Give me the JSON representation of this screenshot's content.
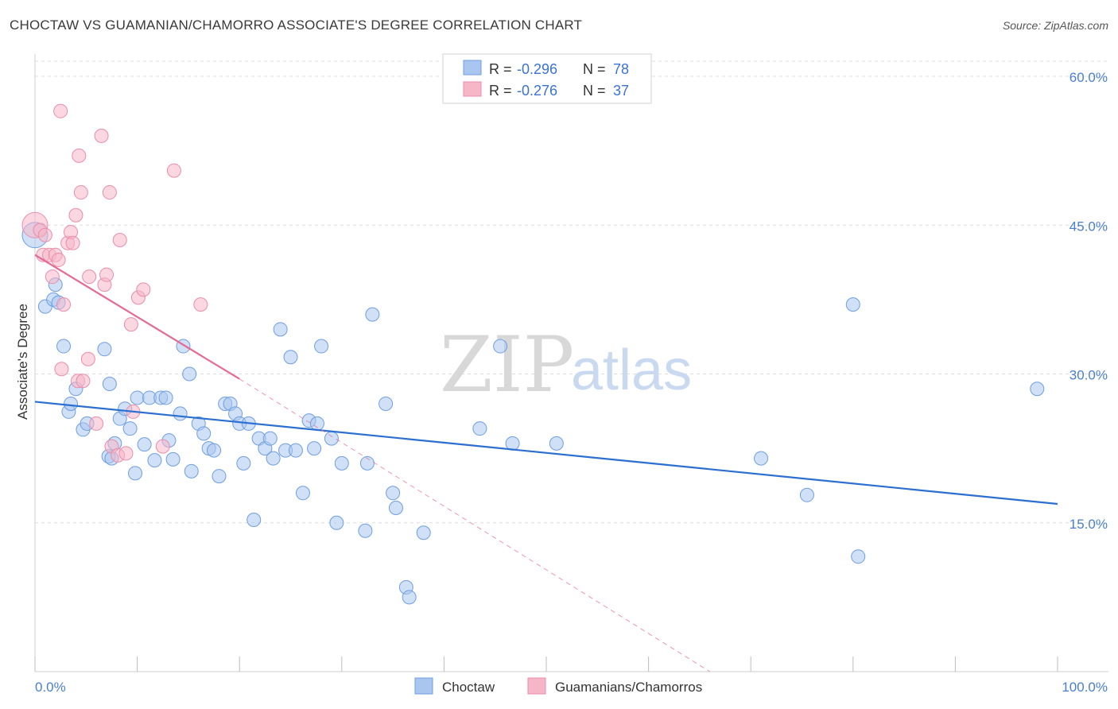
{
  "header": {
    "title": "CHOCTAW VS GUAMANIAN/CHAMORRO ASSOCIATE'S DEGREE CORRELATION CHART",
    "source": "Source: ZipAtlas.com"
  },
  "watermark": {
    "zip": "ZIP",
    "atlas": "atlas"
  },
  "legend": {
    "rows": [
      {
        "r_label": "R =",
        "r_value": "-0.296",
        "n_label": "N =",
        "n_value": "78",
        "color": "#a9c6f0"
      },
      {
        "r_label": "R =",
        "r_value": "-0.276",
        "n_label": "N =",
        "n_value": "37",
        "color": "#f5b6c8"
      }
    ]
  },
  "colors": {
    "choctaw_fill": "#a9c6f0",
    "choctaw_stroke": "#6f9ee0",
    "choctaw_line": "#2a6fd1",
    "guam_fill": "#f5b6c8",
    "guam_stroke": "#ea8dab",
    "guam_line": "#e66a93",
    "grid": "#dddddd",
    "tick_text": "#4a7fd0"
  },
  "chart_data": {
    "type": "scatter",
    "title": "CHOCTAW VS GUAMANIAN/CHAMORRO ASSOCIATE'S DEGREE CORRELATION CHART",
    "xlabel": "",
    "ylabel": "Associate's Degree",
    "xlim": [
      0,
      100
    ],
    "ylim": [
      0,
      60
    ],
    "x_tick_labels": [
      "0.0%",
      "100.0%"
    ],
    "y_ticks": [
      15,
      30,
      45,
      60
    ],
    "y_tick_labels": [
      "15.0%",
      "30.0%",
      "45.0%",
      "60.0%"
    ],
    "grid": true,
    "legend_position": "top-center",
    "bottom_legend": [
      "Choctaw",
      "Guamanians/Chamorros"
    ],
    "series": [
      {
        "name": "Choctaw",
        "points": [
          [
            0.0,
            44.0
          ],
          [
            1.0,
            36.8
          ],
          [
            1.8,
            37.5
          ],
          [
            2.0,
            39.0
          ],
          [
            2.3,
            37.2
          ],
          [
            2.8,
            32.8
          ],
          [
            3.3,
            26.2
          ],
          [
            3.5,
            27.0
          ],
          [
            4.0,
            28.5
          ],
          [
            4.7,
            24.4
          ],
          [
            5.1,
            25.0
          ],
          [
            7.2,
            21.7
          ],
          [
            7.5,
            21.5
          ],
          [
            7.8,
            23.0
          ],
          [
            6.8,
            32.5
          ],
          [
            7.3,
            29.0
          ],
          [
            8.3,
            25.5
          ],
          [
            8.8,
            26.5
          ],
          [
            9.3,
            24.5
          ],
          [
            9.8,
            20.0
          ],
          [
            10.0,
            27.6
          ],
          [
            10.7,
            22.9
          ],
          [
            11.2,
            27.6
          ],
          [
            11.7,
            21.3
          ],
          [
            12.3,
            27.6
          ],
          [
            12.8,
            27.6
          ],
          [
            13.1,
            23.3
          ],
          [
            13.5,
            21.4
          ],
          [
            14.2,
            26.0
          ],
          [
            14.5,
            32.8
          ],
          [
            15.1,
            30.0
          ],
          [
            15.3,
            20.2
          ],
          [
            16.0,
            25.0
          ],
          [
            16.5,
            24.0
          ],
          [
            17.0,
            22.5
          ],
          [
            17.5,
            22.3
          ],
          [
            18.0,
            19.7
          ],
          [
            18.6,
            27.0
          ],
          [
            19.1,
            27.0
          ],
          [
            19.6,
            26.0
          ],
          [
            20.0,
            25.0
          ],
          [
            20.4,
            21.0
          ],
          [
            20.9,
            25.0
          ],
          [
            21.4,
            15.3
          ],
          [
            21.9,
            23.5
          ],
          [
            22.5,
            22.5
          ],
          [
            23.0,
            23.5
          ],
          [
            23.3,
            21.5
          ],
          [
            24.0,
            34.5
          ],
          [
            24.5,
            22.3
          ],
          [
            25.0,
            31.7
          ],
          [
            25.5,
            22.3
          ],
          [
            26.2,
            18.0
          ],
          [
            26.8,
            25.3
          ],
          [
            27.3,
            22.5
          ],
          [
            27.6,
            25.0
          ],
          [
            28.0,
            32.8
          ],
          [
            29.0,
            23.5
          ],
          [
            29.5,
            15.0
          ],
          [
            30.0,
            21.0
          ],
          [
            32.3,
            14.2
          ],
          [
            32.5,
            21.0
          ],
          [
            33.0,
            36.0
          ],
          [
            34.3,
            27.0
          ],
          [
            35.0,
            18.0
          ],
          [
            35.3,
            16.5
          ],
          [
            36.3,
            8.5
          ],
          [
            36.6,
            7.5
          ],
          [
            38.0,
            14.0
          ],
          [
            43.5,
            24.5
          ],
          [
            45.5,
            32.8
          ],
          [
            46.7,
            23.0
          ],
          [
            51.0,
            23.0
          ],
          [
            71.0,
            21.5
          ],
          [
            75.5,
            17.8
          ],
          [
            80.0,
            37.0
          ],
          [
            80.5,
            11.6
          ],
          [
            98.0,
            28.5
          ]
        ],
        "trend": {
          "x0": 0,
          "y0": 27.2,
          "x1": 100,
          "y1": 16.9
        }
      },
      {
        "name": "Guamanians/Chamorros",
        "points": [
          [
            0.0,
            45.0
          ],
          [
            0.5,
            44.5
          ],
          [
            0.8,
            42.0
          ],
          [
            1.0,
            44.0
          ],
          [
            1.4,
            42.0
          ],
          [
            1.7,
            39.8
          ],
          [
            2.0,
            42.0
          ],
          [
            2.3,
            41.5
          ],
          [
            2.6,
            30.5
          ],
          [
            2.8,
            37.0
          ],
          [
            2.5,
            56.5
          ],
          [
            3.2,
            43.2
          ],
          [
            3.5,
            44.3
          ],
          [
            3.7,
            43.2
          ],
          [
            4.0,
            46.0
          ],
          [
            4.2,
            29.3
          ],
          [
            4.5,
            48.3
          ],
          [
            4.7,
            29.3
          ],
          [
            4.3,
            52.0
          ],
          [
            5.2,
            31.5
          ],
          [
            5.3,
            39.8
          ],
          [
            6.0,
            25.0
          ],
          [
            6.5,
            54.0
          ],
          [
            6.8,
            39.0
          ],
          [
            7.0,
            40.0
          ],
          [
            7.3,
            48.3
          ],
          [
            7.5,
            22.7
          ],
          [
            8.1,
            21.8
          ],
          [
            8.3,
            43.5
          ],
          [
            8.9,
            22.0
          ],
          [
            9.4,
            35.0
          ],
          [
            9.6,
            26.2
          ],
          [
            10.1,
            37.7
          ],
          [
            10.6,
            38.5
          ],
          [
            12.5,
            22.7
          ],
          [
            13.6,
            50.5
          ],
          [
            16.2,
            37.0
          ]
        ],
        "trend": {
          "x0": 0,
          "y0": 42.0,
          "x1": 20,
          "y1": 29.5
        },
        "trend_extension": {
          "x0": 20,
          "y0": 29.5,
          "x1": 66,
          "y1": 0.0
        }
      }
    ]
  }
}
